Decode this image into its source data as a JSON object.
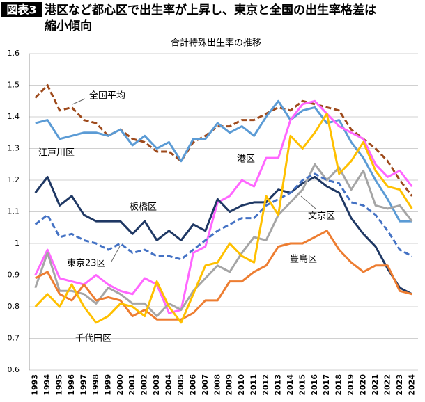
{
  "chart_data": {
    "type": "line",
    "badge": "図表3",
    "title": [
      "港区など都心区で出生率が上昇し、東京と全国の出生率格差は",
      "縮小傾向"
    ],
    "subtitle": "合計特殊出生率の推移",
    "categories": [
      "1993",
      "1994",
      "1995",
      "1996",
      "1997",
      "1998",
      "1999",
      "2000",
      "2001",
      "2002",
      "2003",
      "2004",
      "2005",
      "2006",
      "2007",
      "2008",
      "2009",
      "2010",
      "2011",
      "2012",
      "2013",
      "2014",
      "2015",
      "2016",
      "2017",
      "2018",
      "2019",
      "2020",
      "2021",
      "2022",
      "2023",
      "2024"
    ],
    "ylim": [
      0.6,
      1.6
    ],
    "yticks": [
      0.6,
      0.7,
      0.8,
      0.9,
      1,
      1.1,
      1.2,
      1.3,
      1.4,
      1.5,
      1.6
    ],
    "grid": true,
    "series": [
      {
        "name": "全国平均",
        "color": "#9e4a1c",
        "dashed": true,
        "values": [
          1.46,
          1.5,
          1.42,
          1.43,
          1.39,
          1.38,
          1.34,
          1.36,
          1.33,
          1.32,
          1.29,
          1.29,
          1.26,
          1.32,
          1.34,
          1.37,
          1.37,
          1.39,
          1.39,
          1.41,
          1.43,
          1.42,
          1.45,
          1.44,
          1.43,
          1.42,
          1.36,
          1.33,
          1.3,
          1.26,
          1.2,
          1.15
        ]
      },
      {
        "name": "江戸川区",
        "color": "#5b9bd5",
        "values": [
          1.38,
          1.39,
          1.33,
          1.34,
          1.35,
          1.35,
          1.34,
          1.36,
          1.31,
          1.34,
          1.3,
          1.32,
          1.26,
          1.33,
          1.33,
          1.38,
          1.35,
          1.37,
          1.34,
          1.4,
          1.45,
          1.39,
          1.42,
          1.43,
          1.38,
          1.39,
          1.32,
          1.27,
          1.2,
          1.14,
          1.07,
          1.07
        ]
      },
      {
        "name": "港区",
        "color": "#ff66ff",
        "values": [
          0.9,
          0.98,
          0.89,
          0.88,
          0.87,
          0.9,
          0.87,
          0.85,
          0.84,
          0.89,
          0.87,
          0.78,
          0.79,
          0.97,
          0.99,
          1.13,
          1.15,
          1.2,
          1.18,
          1.27,
          1.27,
          1.39,
          1.44,
          1.45,
          1.41,
          1.37,
          1.35,
          1.33,
          1.25,
          1.21,
          1.23,
          1.18
        ]
      },
      {
        "name": "板橋区",
        "color": "#1f3864",
        "values": [
          1.16,
          1.21,
          1.12,
          1.15,
          1.09,
          1.07,
          1.07,
          1.07,
          1.03,
          1.07,
          1.01,
          1.04,
          1.01,
          1.06,
          1.04,
          1.14,
          1.1,
          1.12,
          1.13,
          1.13,
          1.17,
          1.16,
          1.19,
          1.21,
          1.18,
          1.16,
          1.08,
          1.03,
          0.99,
          0.92,
          0.86,
          0.84
        ]
      },
      {
        "name": "文京区",
        "color": "#a5a5a5",
        "values": [
          0.86,
          0.97,
          0.85,
          0.85,
          0.84,
          0.81,
          0.86,
          0.84,
          0.81,
          0.81,
          0.77,
          0.81,
          0.79,
          0.85,
          0.89,
          0.93,
          0.91,
          0.97,
          1.02,
          1.01,
          1.09,
          1.13,
          1.17,
          1.25,
          1.2,
          1.24,
          1.17,
          1.23,
          1.12,
          1.11,
          1.12,
          1.07
        ]
      },
      {
        "name": "東京23区",
        "color": "#4472c4",
        "dashed": true,
        "values": [
          1.06,
          1.09,
          1.02,
          1.03,
          1.01,
          1.0,
          0.98,
          1.0,
          0.97,
          0.98,
          0.96,
          0.96,
          0.95,
          0.98,
          1.01,
          1.04,
          1.06,
          1.08,
          1.08,
          1.12,
          1.14,
          1.16,
          1.2,
          1.22,
          1.2,
          1.19,
          1.13,
          1.12,
          1.09,
          1.04,
          0.98,
          0.96
        ]
      },
      {
        "name": "豊島区",
        "color": "#ed7d31",
        "values": [
          0.89,
          0.91,
          0.84,
          0.82,
          0.87,
          0.82,
          0.83,
          0.82,
          0.77,
          0.79,
          0.76,
          0.76,
          0.76,
          0.78,
          0.82,
          0.82,
          0.88,
          0.88,
          0.91,
          0.93,
          0.99,
          1.0,
          1.0,
          1.02,
          1.04,
          0.98,
          0.94,
          0.91,
          0.93,
          0.93,
          0.85,
          0.84
        ]
      },
      {
        "name": "千代田区",
        "color": "#ffc000",
        "values": [
          0.8,
          0.84,
          0.8,
          0.87,
          0.8,
          0.75,
          0.77,
          0.81,
          0.8,
          0.77,
          0.88,
          0.8,
          0.75,
          0.84,
          0.93,
          0.94,
          1.0,
          0.96,
          0.94,
          1.15,
          1.09,
          1.34,
          1.3,
          1.35,
          1.41,
          1.22,
          1.26,
          1.32,
          1.23,
          1.18,
          1.17,
          1.11
        ]
      }
    ]
  }
}
